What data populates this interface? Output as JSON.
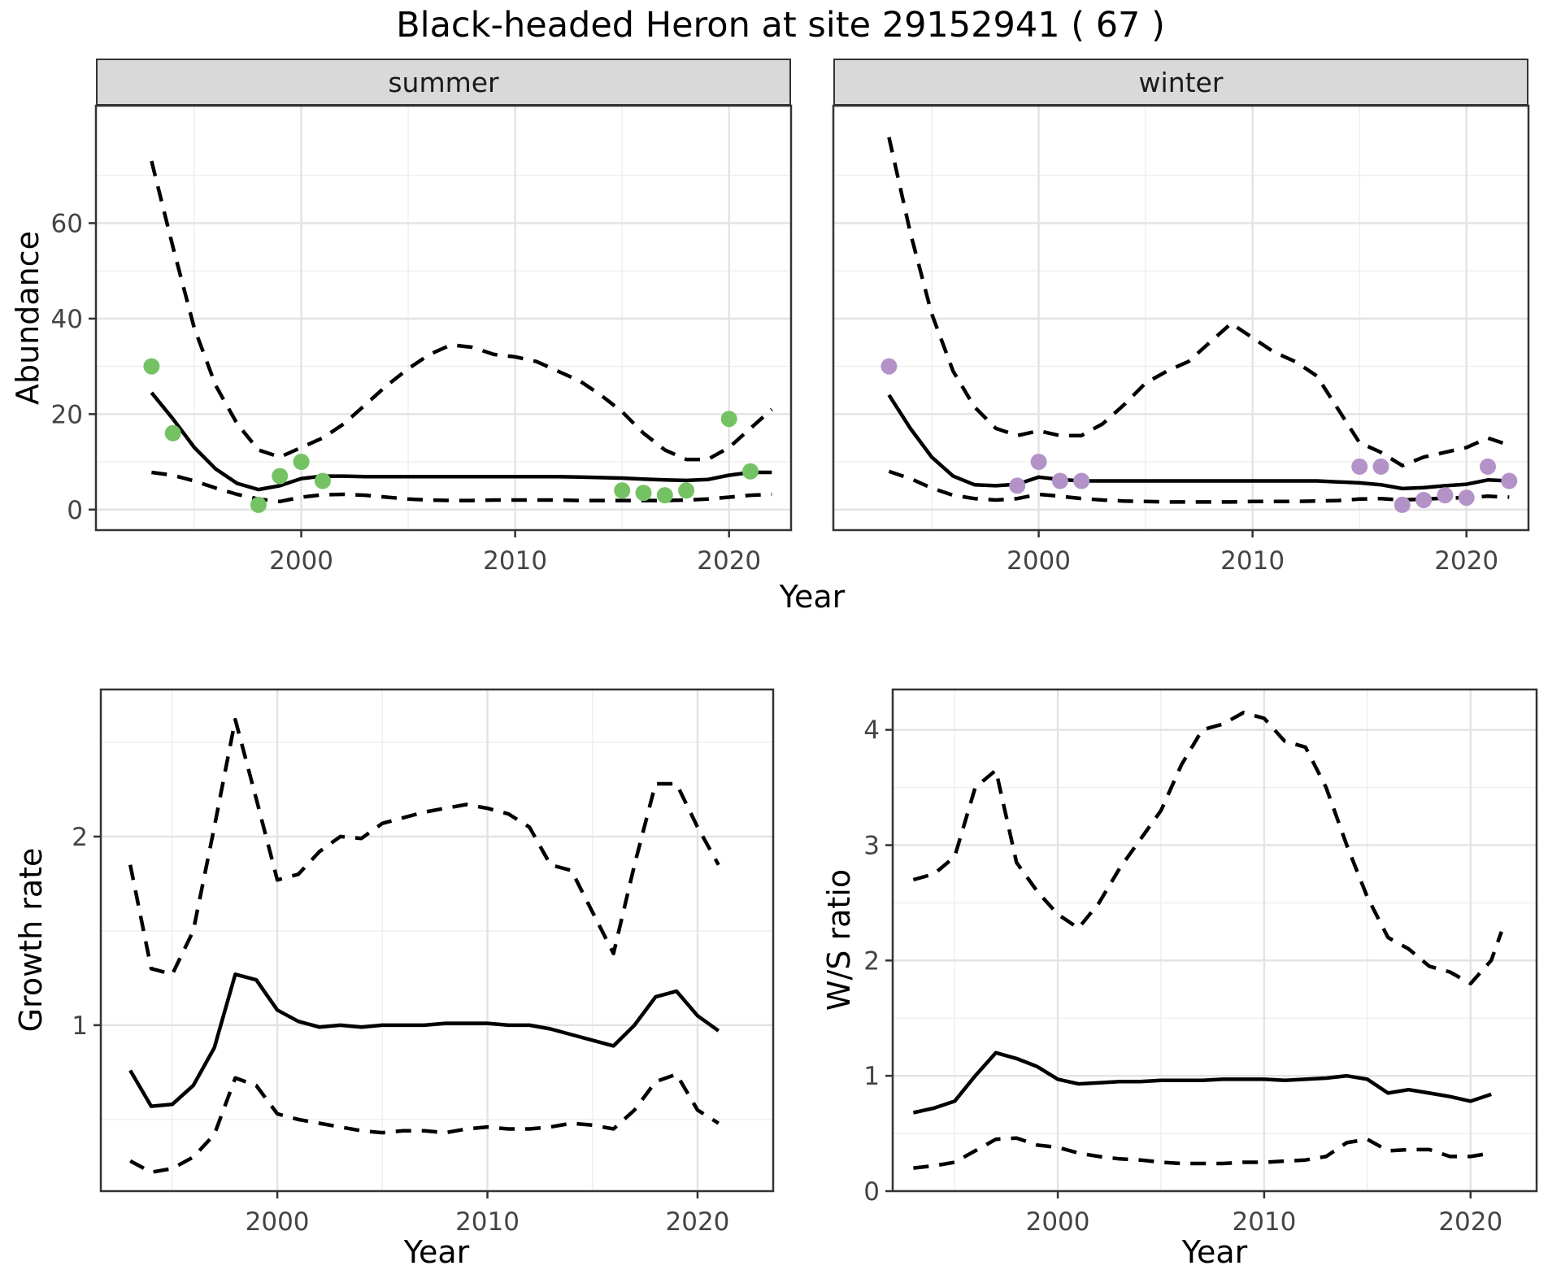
{
  "title": "Black-headed Heron at site 29152941 ( 67 )",
  "colors": {
    "summer_point": "#74c264",
    "winter_point": "#b392c8",
    "line": "#000000",
    "strip_bg": "#d9d9d9",
    "panel_border": "#333333",
    "grid_major": "#e3e3e3",
    "grid_minor": "#f0f0f0",
    "tick": "#333333",
    "tick_text": "#444444"
  },
  "facets": [
    {
      "label": "summer"
    },
    {
      "label": "winter"
    }
  ],
  "axes": {
    "abundance_label": "Abundance",
    "year_label": "Year",
    "growth_label": "Growth rate",
    "ws_label": "W/S ratio"
  },
  "chart_data": [
    {
      "id": "abundance-summer",
      "type": "line",
      "facet": "summer",
      "xlabel": "Year",
      "ylabel": "Abundance",
      "xlim": [
        1990.4,
        2022.9
      ],
      "ylim": [
        -4.3,
        84.6
      ],
      "xticks": [
        2000,
        2010,
        2020
      ],
      "yticks": [
        0,
        20,
        40,
        60
      ],
      "xminor": [
        1995,
        2005,
        2015
      ],
      "yminor": [
        10,
        30,
        50,
        70
      ],
      "series": [
        {
          "name": "fit",
          "style": "solid",
          "x": [
            1993,
            1994,
            1995,
            1996,
            1997,
            1998,
            1999,
            2000,
            2001,
            2002,
            2003,
            2004,
            2005,
            2006,
            2007,
            2008,
            2009,
            2010,
            2011,
            2012,
            2013,
            2014,
            2015,
            2016,
            2017,
            2018,
            2019,
            2020,
            2021,
            2022
          ],
          "y": [
            24.5,
            19,
            13,
            8.5,
            5.5,
            4.2,
            5,
            6.5,
            7,
            7,
            6.9,
            6.9,
            6.9,
            6.9,
            6.9,
            6.9,
            6.9,
            6.9,
            6.9,
            6.9,
            6.8,
            6.7,
            6.6,
            6.4,
            6.2,
            6.1,
            6.3,
            7.2,
            7.8,
            7.8
          ]
        },
        {
          "name": "upper95",
          "style": "dashed",
          "x": [
            1993,
            1994,
            1995,
            1996,
            1997,
            1998,
            1999,
            2000,
            2001,
            2002,
            2003,
            2004,
            2005,
            2006,
            2007,
            2008,
            2009,
            2010,
            2011,
            2012,
            2013,
            2014,
            2015,
            2016,
            2017,
            2018,
            2019,
            2020,
            2021,
            2022
          ],
          "y": [
            73,
            55,
            38,
            26,
            18,
            12.5,
            11,
            13,
            15,
            18,
            22,
            26,
            29.5,
            32.5,
            34.5,
            34,
            32.5,
            32,
            31,
            29,
            27,
            24,
            20.5,
            16,
            12.5,
            10.5,
            10.5,
            13,
            17,
            21
          ]
        },
        {
          "name": "lower95",
          "style": "dashed",
          "x": [
            1993,
            1994,
            1995,
            1996,
            1997,
            1998,
            1999,
            2000,
            2001,
            2002,
            2003,
            2004,
            2005,
            2006,
            2007,
            2008,
            2009,
            2010,
            2011,
            2012,
            2013,
            2014,
            2015,
            2016,
            2017,
            2018,
            2019,
            2020,
            2021,
            2022
          ],
          "y": [
            7.8,
            7.2,
            6,
            4.5,
            3.2,
            2.2,
            1.7,
            2.6,
            3.1,
            3.2,
            3,
            2.6,
            2.2,
            2,
            1.9,
            1.9,
            2,
            2,
            2,
            2,
            1.9,
            1.9,
            1.9,
            1.9,
            1.9,
            2,
            2.2,
            2.6,
            3,
            3.2
          ]
        }
      ],
      "points": {
        "name": "summer-observations",
        "color_key": "summer_point",
        "x": [
          1993,
          1994,
          1998,
          1999,
          2000,
          2001,
          2015,
          2016,
          2017,
          2018,
          2020,
          2021
        ],
        "y": [
          30,
          16,
          1,
          7,
          10,
          6,
          4,
          3.5,
          3,
          4,
          19,
          8
        ]
      }
    },
    {
      "id": "abundance-winter",
      "type": "line",
      "facet": "winter",
      "xlabel": "Year",
      "ylabel": "Abundance",
      "xlim": [
        1990.4,
        2022.9
      ],
      "ylim": [
        -4.3,
        84.6
      ],
      "xticks": [
        2000,
        2010,
        2020
      ],
      "yticks": [
        0,
        20,
        40,
        60
      ],
      "xminor": [
        1995,
        2005,
        2015
      ],
      "yminor": [
        10,
        30,
        50,
        70
      ],
      "series": [
        {
          "name": "fit",
          "style": "solid",
          "x": [
            1993,
            1994,
            1995,
            1996,
            1997,
            1998,
            1999,
            2000,
            2001,
            2002,
            2003,
            2004,
            2005,
            2006,
            2007,
            2008,
            2009,
            2010,
            2011,
            2012,
            2013,
            2014,
            2015,
            2016,
            2017,
            2018,
            2019,
            2020,
            2021,
            2022
          ],
          "y": [
            24,
            17,
            11,
            7,
            5.2,
            5,
            5.3,
            6.8,
            6.3,
            6,
            6,
            6,
            6,
            6,
            6,
            6,
            6,
            6,
            6,
            6,
            6,
            5.8,
            5.6,
            5.2,
            4.4,
            4.6,
            5,
            5.3,
            6.2,
            6
          ]
        },
        {
          "name": "upper95",
          "style": "dashed",
          "x": [
            1993,
            1994,
            1995,
            1996,
            1997,
            1998,
            1999,
            2000,
            2001,
            2002,
            2003,
            2004,
            2005,
            2006,
            2007,
            2008,
            2009,
            2010,
            2011,
            2012,
            2013,
            2014,
            2015,
            2016,
            2017,
            2018,
            2019,
            2020,
            2021,
            2022
          ],
          "y": [
            78,
            58,
            41,
            29,
            21.5,
            17,
            15.5,
            16.5,
            15.5,
            15.5,
            18,
            22,
            26.5,
            29,
            31,
            35,
            39,
            36,
            33,
            31,
            28,
            21,
            14,
            12,
            9.2,
            11,
            12,
            13,
            15,
            13.5
          ]
        },
        {
          "name": "lower95",
          "style": "dashed",
          "x": [
            1993,
            1994,
            1995,
            1996,
            1997,
            1998,
            1999,
            2000,
            2001,
            2002,
            2003,
            2004,
            2005,
            2006,
            2007,
            2008,
            2009,
            2010,
            2011,
            2012,
            2013,
            2014,
            2015,
            2016,
            2017,
            2018,
            2019,
            2020,
            2021,
            2022
          ],
          "y": [
            8,
            6.5,
            4.5,
            3,
            2.3,
            2,
            2.3,
            3.2,
            2.8,
            2.3,
            2,
            1.8,
            1.7,
            1.6,
            1.6,
            1.6,
            1.6,
            1.7,
            1.7,
            1.7,
            1.8,
            1.9,
            2.2,
            2.3,
            2,
            2.2,
            2.4,
            2.5,
            2.8,
            2.6
          ]
        }
      ],
      "points": {
        "name": "winter-observations",
        "color_key": "winter_point",
        "x": [
          1993,
          1999,
          2000,
          2001,
          2002,
          2015,
          2016,
          2017,
          2018,
          2019,
          2020,
          2021,
          2022
        ],
        "y": [
          30,
          5,
          10,
          6,
          6,
          9,
          9,
          1,
          2,
          3,
          2.5,
          9,
          6
        ]
      }
    },
    {
      "id": "growth-rate",
      "type": "line",
      "xlabel": "Year",
      "ylabel": "Growth rate",
      "xlim": [
        1991.6,
        2023.6
      ],
      "ylim": [
        0.12,
        2.78
      ],
      "xticks": [
        2000,
        2010,
        2020
      ],
      "yticks": [
        1,
        2
      ],
      "xminor": [
        1995,
        2005,
        2015
      ],
      "yminor": [
        0.5,
        1.5,
        2.5
      ],
      "series": [
        {
          "name": "fit",
          "style": "solid",
          "x": [
            1993,
            1994,
            1995,
            1996,
            1997,
            1998,
            1999,
            2000,
            2001,
            2002,
            2003,
            2004,
            2005,
            2006,
            2007,
            2008,
            2009,
            2010,
            2011,
            2012,
            2013,
            2014,
            2015,
            2016,
            2017,
            2018,
            2019,
            2020,
            2021
          ],
          "y": [
            0.76,
            0.57,
            0.58,
            0.68,
            0.88,
            1.27,
            1.24,
            1.08,
            1.02,
            0.99,
            1,
            0.99,
            1,
            1,
            1,
            1.01,
            1.01,
            1.01,
            1,
            1,
            0.98,
            0.95,
            0.92,
            0.89,
            1,
            1.15,
            1.18,
            1.05,
            0.97
          ]
        },
        {
          "name": "upper95",
          "style": "dashed",
          "x": [
            1993,
            1994,
            1995,
            1996,
            1997,
            1998,
            1999,
            2000,
            2001,
            2002,
            2003,
            2004,
            2005,
            2006,
            2007,
            2008,
            2009,
            2010,
            2011,
            2012,
            2013,
            2014,
            2015,
            2016,
            2017,
            2018,
            2019,
            2020,
            2021
          ],
          "y": [
            1.85,
            1.3,
            1.27,
            1.5,
            2.05,
            2.62,
            2.2,
            1.77,
            1.8,
            1.92,
            2,
            1.99,
            2.07,
            2.1,
            2.13,
            2.15,
            2.17,
            2.15,
            2.12,
            2.05,
            1.85,
            1.82,
            1.6,
            1.38,
            1.85,
            2.28,
            2.28,
            2.05,
            1.85
          ]
        },
        {
          "name": "lower95",
          "style": "dashed",
          "x": [
            1993,
            1994,
            1995,
            1996,
            1997,
            1998,
            1999,
            2000,
            2001,
            2002,
            2003,
            2004,
            2005,
            2006,
            2007,
            2008,
            2009,
            2010,
            2011,
            2012,
            2013,
            2014,
            2015,
            2016,
            2017,
            2018,
            2019,
            2020,
            2021
          ],
          "y": [
            0.28,
            0.22,
            0.24,
            0.3,
            0.42,
            0.72,
            0.68,
            0.53,
            0.5,
            0.48,
            0.46,
            0.44,
            0.43,
            0.44,
            0.44,
            0.43,
            0.45,
            0.46,
            0.45,
            0.45,
            0.46,
            0.48,
            0.47,
            0.45,
            0.55,
            0.7,
            0.74,
            0.55,
            0.48
          ]
        }
      ]
    },
    {
      "id": "ws-ratio",
      "type": "line",
      "xlabel": "Year",
      "ylabel": "W/S ratio",
      "xlim": [
        1992.0,
        2023.2
      ],
      "ylim": [
        0,
        4.35
      ],
      "xticks": [
        2000,
        2010,
        2020
      ],
      "yticks": [
        0,
        1,
        2,
        3,
        4
      ],
      "xminor": [
        1995,
        2005,
        2015
      ],
      "yminor": [
        0.5,
        1.5,
        2.5,
        3.5
      ],
      "series": [
        {
          "name": "fit",
          "style": "solid",
          "x": [
            1993,
            1994,
            1995,
            1996,
            1997,
            1998,
            1999,
            2000,
            2001,
            2002,
            2003,
            2004,
            2005,
            2006,
            2007,
            2008,
            2009,
            2010,
            2011,
            2012,
            2013,
            2014,
            2015,
            2016,
            2017,
            2018,
            2019,
            2020,
            2021
          ],
          "y": [
            0.68,
            0.72,
            0.78,
            1,
            1.2,
            1.15,
            1.08,
            0.97,
            0.93,
            0.94,
            0.95,
            0.95,
            0.96,
            0.96,
            0.96,
            0.97,
            0.97,
            0.97,
            0.96,
            0.97,
            0.98,
            1,
            0.97,
            0.85,
            0.88,
            0.85,
            0.82,
            0.78,
            0.84
          ]
        },
        {
          "name": "upper95",
          "style": "dashed",
          "x": [
            1993,
            1994,
            1995,
            1996,
            1997,
            1998,
            1999,
            2000,
            2001,
            2002,
            2003,
            2004,
            2005,
            2006,
            2007,
            2008,
            2009,
            2010,
            2011,
            2012,
            2013,
            2014,
            2015,
            2016,
            2017,
            2018,
            2019,
            2020,
            2021,
            2021.5
          ],
          "y": [
            2.7,
            2.75,
            2.9,
            3.5,
            3.65,
            2.85,
            2.6,
            2.4,
            2.28,
            2.5,
            2.8,
            3.05,
            3.3,
            3.7,
            4,
            4.05,
            4.15,
            4.1,
            3.9,
            3.85,
            3.5,
            3,
            2.55,
            2.2,
            2.1,
            1.95,
            1.9,
            1.8,
            2,
            2.25
          ]
        },
        {
          "name": "lower95",
          "style": "dashed",
          "x": [
            1993,
            1994,
            1995,
            1996,
            1997,
            1998,
            1999,
            2000,
            2001,
            2002,
            2003,
            2004,
            2005,
            2006,
            2007,
            2008,
            2009,
            2010,
            2011,
            2012,
            2013,
            2014,
            2015,
            2016,
            2017,
            2018,
            2019,
            2020,
            2021
          ],
          "y": [
            0.2,
            0.22,
            0.25,
            0.35,
            0.45,
            0.46,
            0.4,
            0.38,
            0.33,
            0.3,
            0.28,
            0.27,
            0.25,
            0.24,
            0.24,
            0.24,
            0.25,
            0.25,
            0.26,
            0.27,
            0.3,
            0.42,
            0.45,
            0.35,
            0.36,
            0.36,
            0.3,
            0.3,
            0.33
          ]
        }
      ]
    }
  ]
}
